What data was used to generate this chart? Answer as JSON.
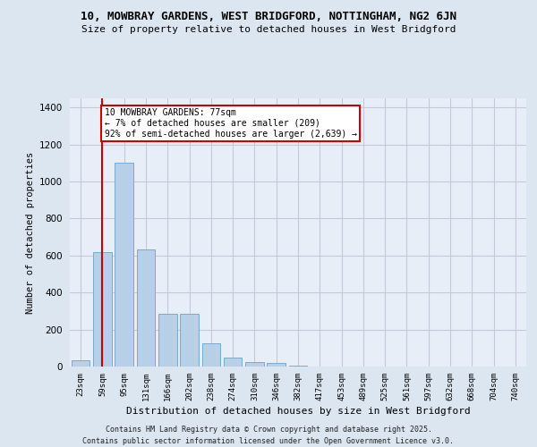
{
  "title": "10, MOWBRAY GARDENS, WEST BRIDGFORD, NOTTINGHAM, NG2 6JN",
  "subtitle": "Size of property relative to detached houses in West Bridgford",
  "xlabel": "Distribution of detached houses by size in West Bridgford",
  "ylabel": "Number of detached properties",
  "categories": [
    "23sqm",
    "59sqm",
    "95sqm",
    "131sqm",
    "166sqm",
    "202sqm",
    "238sqm",
    "274sqm",
    "310sqm",
    "346sqm",
    "382sqm",
    "417sqm",
    "453sqm",
    "489sqm",
    "525sqm",
    "561sqm",
    "597sqm",
    "632sqm",
    "668sqm",
    "704sqm",
    "740sqm"
  ],
  "values": [
    35,
    620,
    1100,
    635,
    285,
    285,
    125,
    50,
    25,
    20,
    5,
    0,
    0,
    0,
    0,
    0,
    0,
    0,
    0,
    0,
    0
  ],
  "bar_color": "#b8cfe8",
  "bar_edge_color": "#7aaad0",
  "vline_index": 1,
  "vline_color": "#cc0000",
  "annotation_text": "10 MOWBRAY GARDENS: 77sqm\n← 7% of detached houses are smaller (209)\n92% of semi-detached houses are larger (2,639) →",
  "annotation_box_color": "#ffffff",
  "annotation_box_edge": "#cc0000",
  "ylim": [
    0,
    1450
  ],
  "yticks": [
    0,
    200,
    400,
    600,
    800,
    1000,
    1200,
    1400
  ],
  "bg_color": "#dce6f0",
  "plot_bg_color": "#e8eef8",
  "grid_color": "#c0cad8",
  "footer_line1": "Contains HM Land Registry data © Crown copyright and database right 2025.",
  "footer_line2": "Contains public sector information licensed under the Open Government Licence v3.0."
}
